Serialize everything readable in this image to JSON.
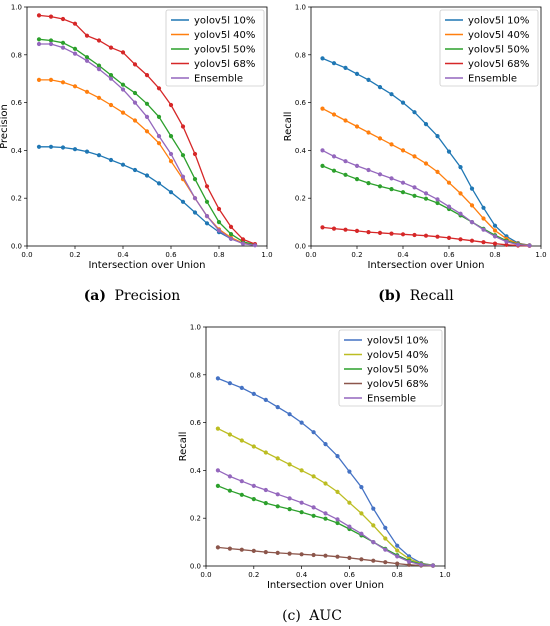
{
  "colors": {
    "yolov5l_10": "#1f77b4",
    "yolov5l_40": "#ff7f0e",
    "yolov5l_50": "#2ca02c",
    "yolov5l_68": "#d62728",
    "ensemble": "#9467bd",
    "auc_40": "#bcbd22",
    "auc_68": "#8c564b",
    "auc_10": "#4472c4"
  },
  "chart_data": [
    {
      "type": "line",
      "caption_label": "(a)",
      "caption_text": "Precision",
      "xlabel": "Intersection over Union",
      "ylabel": "Precision",
      "xlim": [
        0,
        1.0
      ],
      "ylim": [
        0,
        1.0
      ],
      "xticks": [
        "0.0",
        "0.2",
        "0.4",
        "0.6",
        "0.8",
        "1.0"
      ],
      "yticks": [
        "0.0",
        "0.2",
        "0.4",
        "0.6",
        "0.8",
        "1.0"
      ],
      "legend_position": "top-right",
      "x": [
        0.05,
        0.1,
        0.15,
        0.2,
        0.25,
        0.3,
        0.35,
        0.4,
        0.45,
        0.5,
        0.55,
        0.6,
        0.65,
        0.7,
        0.75,
        0.8,
        0.85,
        0.9,
        0.95
      ],
      "series": [
        {
          "name": "yolov5l 10%",
          "color_key": "yolov5l_10",
          "values": [
            0.415,
            0.415,
            0.412,
            0.405,
            0.395,
            0.38,
            0.36,
            0.34,
            0.318,
            0.295,
            0.262,
            0.225,
            0.185,
            0.14,
            0.095,
            0.058,
            0.03,
            0.012,
            0.004
          ]
        },
        {
          "name": "yolov5l 40%",
          "color_key": "yolov5l_40",
          "values": [
            0.695,
            0.695,
            0.685,
            0.668,
            0.645,
            0.62,
            0.59,
            0.558,
            0.525,
            0.48,
            0.43,
            0.355,
            0.28,
            0.2,
            0.125,
            0.07,
            0.035,
            0.012,
            0.004
          ]
        },
        {
          "name": "yolov5l 50%",
          "color_key": "yolov5l_50",
          "values": [
            0.865,
            0.86,
            0.85,
            0.825,
            0.79,
            0.755,
            0.715,
            0.675,
            0.64,
            0.595,
            0.54,
            0.46,
            0.38,
            0.28,
            0.185,
            0.1,
            0.05,
            0.018,
            0.005
          ]
        },
        {
          "name": "yolov5l 68%",
          "color_key": "yolov5l_68",
          "values": [
            0.965,
            0.96,
            0.95,
            0.93,
            0.88,
            0.86,
            0.83,
            0.81,
            0.76,
            0.715,
            0.66,
            0.59,
            0.5,
            0.385,
            0.25,
            0.155,
            0.08,
            0.028,
            0.008
          ]
        },
        {
          "name": "Ensemble",
          "color_key": "ensemble",
          "values": [
            0.845,
            0.845,
            0.83,
            0.805,
            0.775,
            0.74,
            0.7,
            0.655,
            0.6,
            0.54,
            0.46,
            0.385,
            0.29,
            0.2,
            0.125,
            0.065,
            0.03,
            0.01,
            0.003
          ]
        }
      ]
    },
    {
      "type": "line",
      "caption_label": "(b)",
      "caption_text": "Recall",
      "xlabel": "Intersection over Union",
      "ylabel": "Recall",
      "xlim": [
        0,
        1.0
      ],
      "ylim": [
        0,
        1.0
      ],
      "xticks": [
        "0.0",
        "0.2",
        "0.4",
        "0.6",
        "0.8",
        "1.0"
      ],
      "yticks": [
        "0.0",
        "0.2",
        "0.4",
        "0.6",
        "0.8",
        "1.0"
      ],
      "legend_position": "top-right",
      "x": [
        0.05,
        0.1,
        0.15,
        0.2,
        0.25,
        0.3,
        0.35,
        0.4,
        0.45,
        0.5,
        0.55,
        0.6,
        0.65,
        0.7,
        0.75,
        0.8,
        0.85,
        0.9,
        0.95
      ],
      "series": [
        {
          "name": "yolov5l 10%",
          "color_key": "yolov5l_10",
          "values": [
            0.785,
            0.765,
            0.745,
            0.72,
            0.695,
            0.665,
            0.635,
            0.6,
            0.56,
            0.51,
            0.46,
            0.395,
            0.33,
            0.24,
            0.16,
            0.085,
            0.04,
            0.012,
            0.003
          ]
        },
        {
          "name": "yolov5l 40%",
          "color_key": "yolov5l_40",
          "values": [
            0.575,
            0.55,
            0.525,
            0.5,
            0.475,
            0.45,
            0.425,
            0.4,
            0.375,
            0.345,
            0.31,
            0.265,
            0.22,
            0.17,
            0.115,
            0.065,
            0.03,
            0.01,
            0.003
          ]
        },
        {
          "name": "yolov5l 50%",
          "color_key": "yolov5l_50",
          "values": [
            0.335,
            0.315,
            0.298,
            0.28,
            0.263,
            0.25,
            0.238,
            0.225,
            0.21,
            0.198,
            0.18,
            0.155,
            0.128,
            0.1,
            0.072,
            0.045,
            0.022,
            0.008,
            0.002
          ]
        },
        {
          "name": "yolov5l 68%",
          "color_key": "yolov5l_68",
          "values": [
            0.078,
            0.073,
            0.068,
            0.063,
            0.058,
            0.055,
            0.052,
            0.049,
            0.046,
            0.043,
            0.039,
            0.034,
            0.028,
            0.022,
            0.016,
            0.01,
            0.005,
            0.002,
            0.001
          ]
        },
        {
          "name": "Ensemble",
          "color_key": "ensemble",
          "values": [
            0.4,
            0.375,
            0.355,
            0.335,
            0.318,
            0.3,
            0.283,
            0.265,
            0.245,
            0.22,
            0.195,
            0.165,
            0.135,
            0.1,
            0.068,
            0.04,
            0.018,
            0.006,
            0.002
          ]
        }
      ]
    },
    {
      "type": "line",
      "caption_label": "(c)",
      "caption_text": "AUC",
      "xlabel": "Intersection over Union",
      "ylabel": "Recall",
      "xlim": [
        0,
        1.0
      ],
      "ylim": [
        0,
        1.0
      ],
      "xticks": [
        "0.0",
        "0.2",
        "0.4",
        "0.6",
        "0.8",
        "1.0"
      ],
      "yticks": [
        "0.0",
        "0.2",
        "0.4",
        "0.6",
        "0.8",
        "1.0"
      ],
      "legend_position": "top-right",
      "x": [
        0.05,
        0.1,
        0.15,
        0.2,
        0.25,
        0.3,
        0.35,
        0.4,
        0.45,
        0.5,
        0.55,
        0.6,
        0.65,
        0.7,
        0.75,
        0.8,
        0.85,
        0.9,
        0.95
      ],
      "series": [
        {
          "name": "yolov5l 10%",
          "color_key": "auc_10",
          "values": [
            0.785,
            0.765,
            0.745,
            0.72,
            0.695,
            0.665,
            0.635,
            0.6,
            0.56,
            0.51,
            0.46,
            0.395,
            0.33,
            0.24,
            0.16,
            0.085,
            0.04,
            0.012,
            0.003
          ]
        },
        {
          "name": "yolov5l 40%",
          "color_key": "auc_40",
          "values": [
            0.575,
            0.55,
            0.525,
            0.5,
            0.475,
            0.45,
            0.425,
            0.4,
            0.375,
            0.345,
            0.31,
            0.265,
            0.22,
            0.17,
            0.115,
            0.065,
            0.03,
            0.01,
            0.003
          ]
        },
        {
          "name": "yolov5l 50%",
          "color_key": "yolov5l_50",
          "values": [
            0.335,
            0.315,
            0.298,
            0.28,
            0.263,
            0.25,
            0.238,
            0.225,
            0.21,
            0.198,
            0.18,
            0.155,
            0.128,
            0.1,
            0.072,
            0.045,
            0.022,
            0.008,
            0.002
          ]
        },
        {
          "name": "yolov5l 68%",
          "color_key": "auc_68",
          "values": [
            0.078,
            0.073,
            0.068,
            0.063,
            0.058,
            0.055,
            0.052,
            0.049,
            0.046,
            0.043,
            0.039,
            0.034,
            0.028,
            0.022,
            0.016,
            0.01,
            0.005,
            0.002,
            0.001
          ]
        },
        {
          "name": "Ensemble",
          "color_key": "ensemble",
          "values": [
            0.4,
            0.375,
            0.355,
            0.335,
            0.318,
            0.3,
            0.283,
            0.265,
            0.245,
            0.22,
            0.195,
            0.165,
            0.135,
            0.1,
            0.068,
            0.04,
            0.018,
            0.006,
            0.002
          ]
        }
      ]
    }
  ]
}
